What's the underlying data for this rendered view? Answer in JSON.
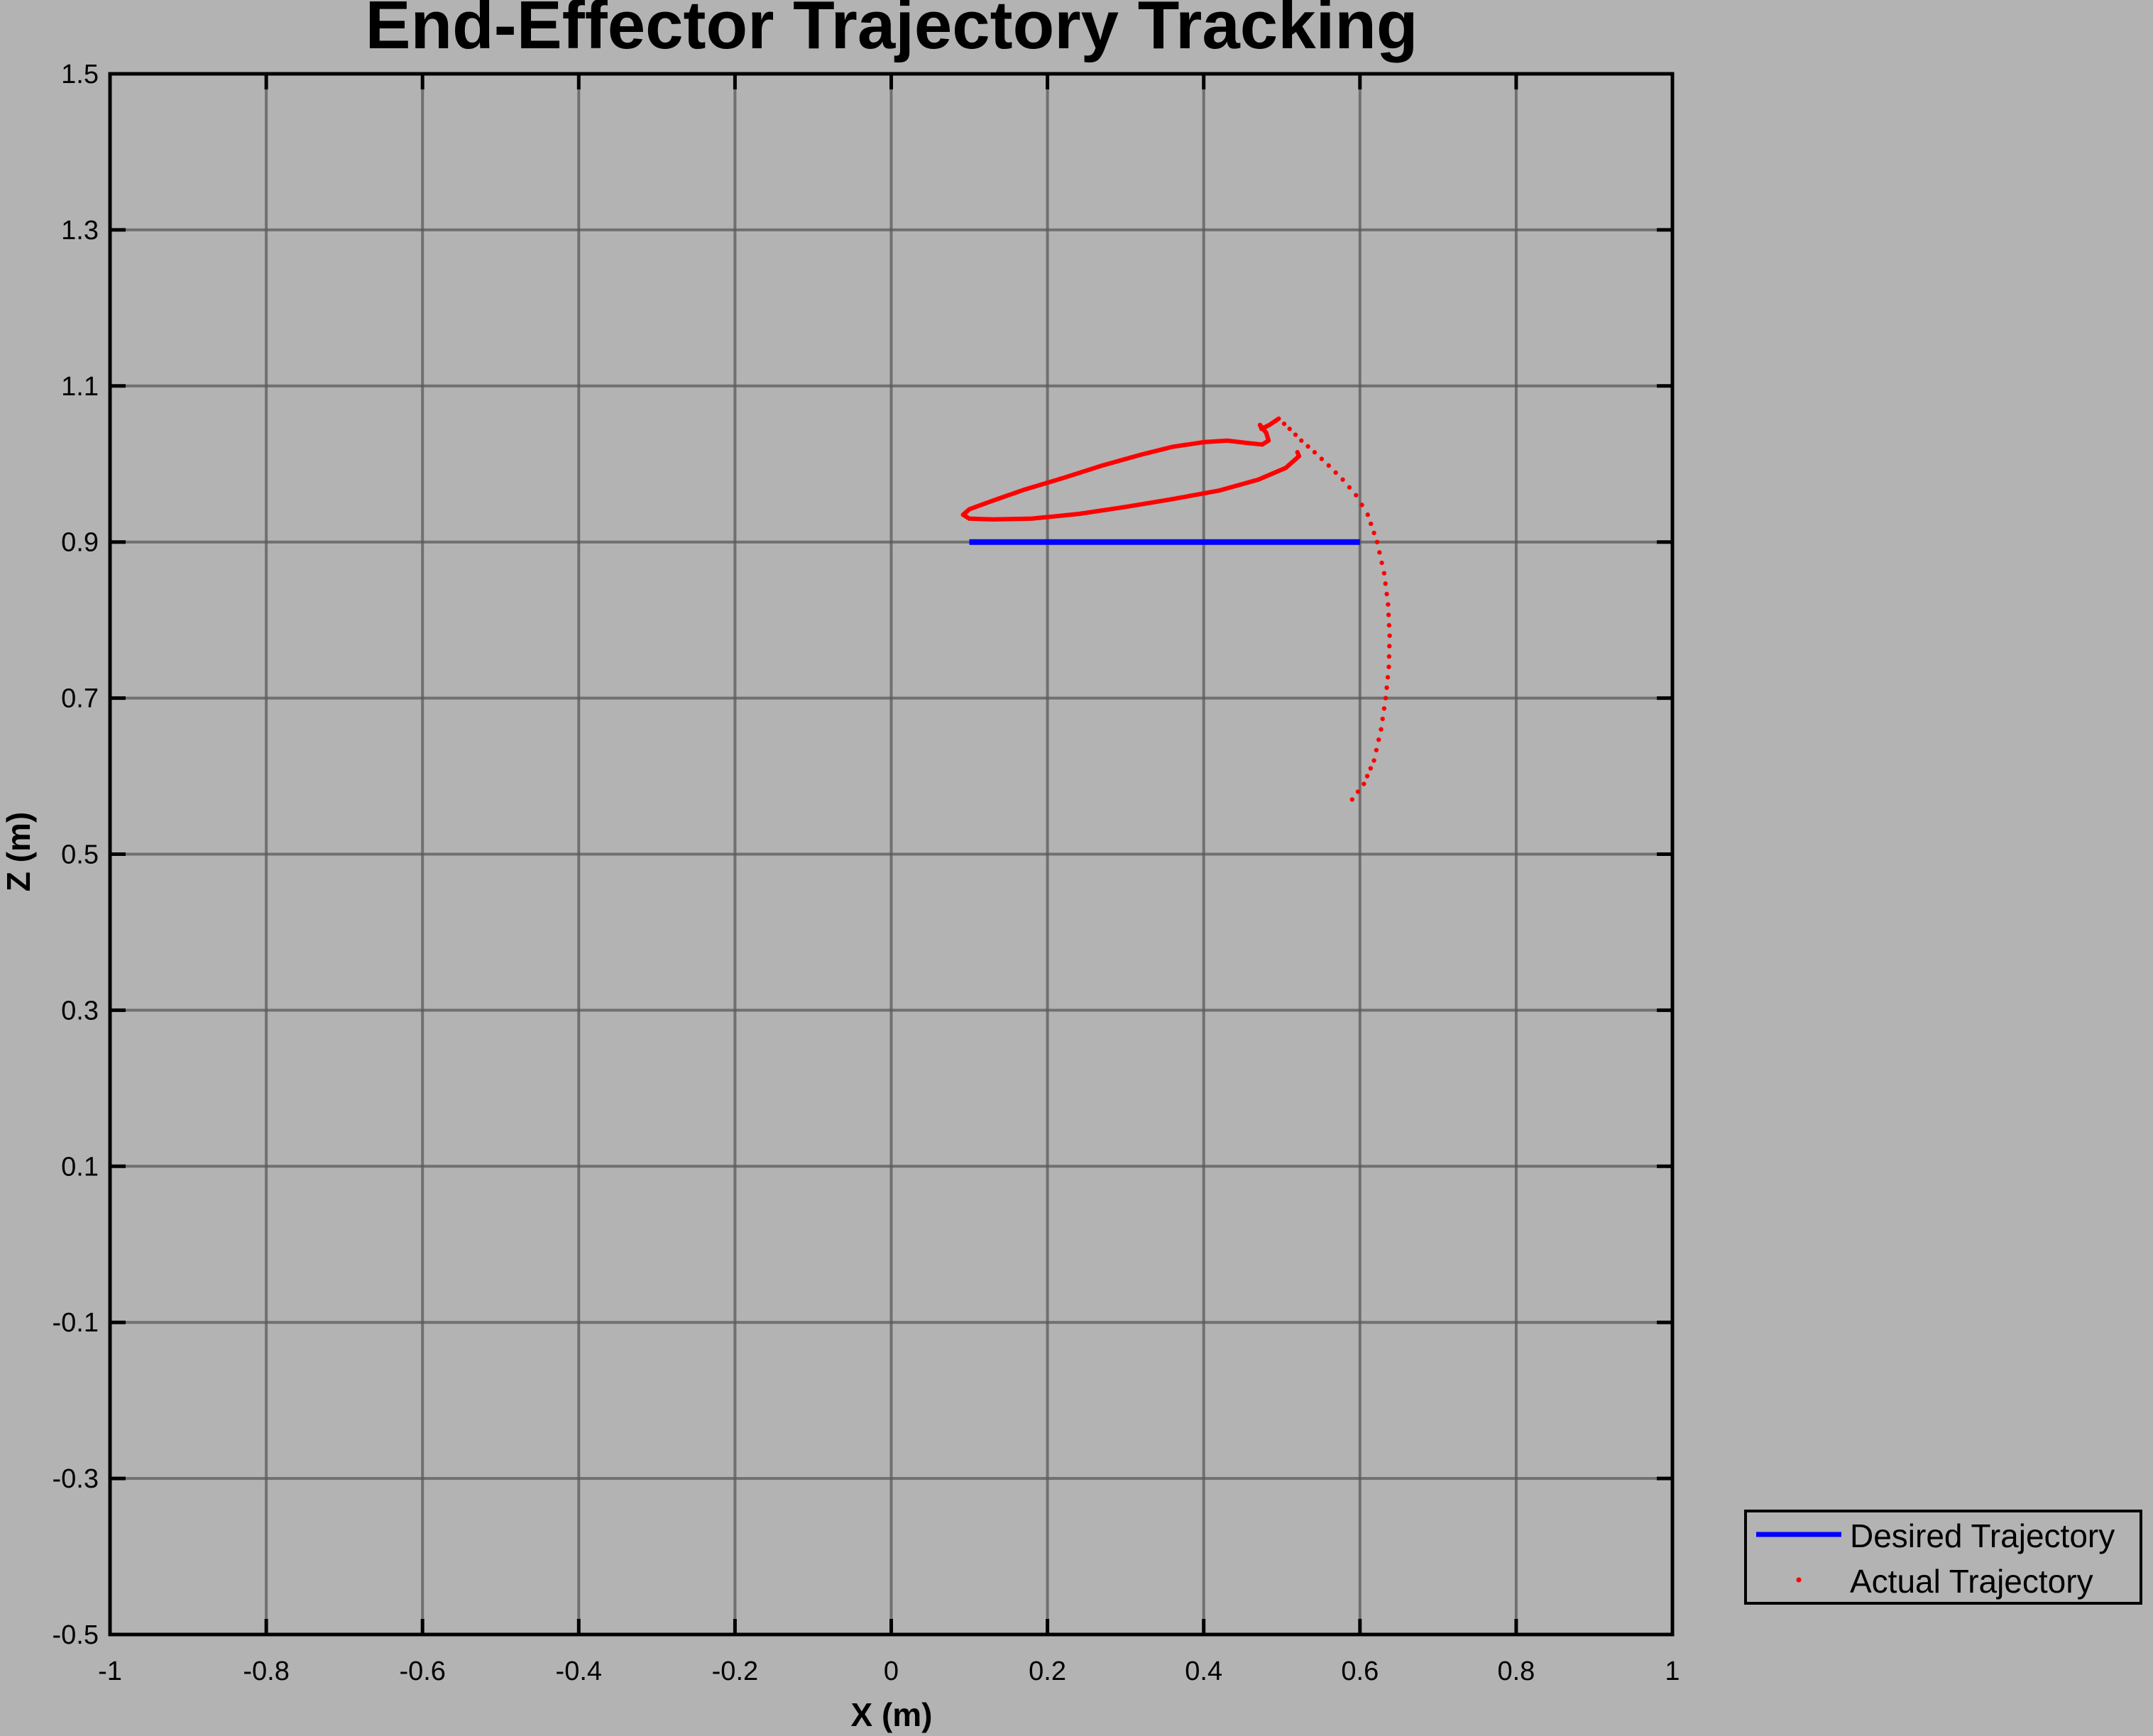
{
  "chart_data": {
    "type": "line",
    "title": "End-Effector Trajectory Tracking",
    "xlabel": "X (m)",
    "ylabel": "Z (m)",
    "xlim": [
      -1,
      1
    ],
    "ylim": [
      -0.5,
      1.5
    ],
    "xticks": [
      -1,
      -0.8,
      -0.6,
      -0.4,
      -0.2,
      0,
      0.2,
      0.4,
      0.6,
      0.8,
      1
    ],
    "xtick_labels": [
      "-1",
      "-0.8",
      "-0.6",
      "-0.4",
      "-0.2",
      "0",
      "0.2",
      "0.4",
      "0.6",
      "0.8",
      "1"
    ],
    "yticks": [
      -0.5,
      -0.3,
      -0.1,
      0.1,
      0.3,
      0.5,
      0.7,
      0.9,
      1.1,
      1.3,
      1.5
    ],
    "ytick_labels": [
      "-0.5",
      "-0.3",
      "-0.1",
      "0.1",
      "0.3",
      "0.5",
      "0.7",
      "0.9",
      "1.1",
      "1.3",
      "1.5"
    ],
    "grid": true,
    "legend_position": "outside-bottom-right",
    "background_color": "#b3b3b3",
    "series": [
      {
        "name": "Desired Trajectory",
        "style": "line",
        "color": "#0000ff",
        "x": [
          0.1,
          0.6
        ],
        "y": [
          0.9,
          0.9
        ]
      },
      {
        "name": "Actual Trajectory",
        "style": "dots",
        "color": "#ff0000",
        "x": [
          0.59,
          0.605,
          0.618,
          0.627,
          0.633,
          0.637,
          0.638,
          0.636,
          0.631,
          0.622,
          0.61,
          0.595,
          0.578,
          0.56,
          0.542,
          0.525,
          0.51,
          0.496,
          0.484,
          0.474,
          0.472,
          0.48,
          0.483,
          0.475,
          0.455,
          0.43,
          0.4,
          0.36,
          0.32,
          0.27,
          0.22,
          0.17,
          0.13,
          0.1,
          0.092,
          0.1,
          0.13,
          0.18,
          0.24,
          0.3,
          0.36,
          0.42,
          0.47,
          0.505,
          0.522,
          0.52
        ],
        "y": [
          0.57,
          0.59,
          0.62,
          0.66,
          0.7,
          0.74,
          0.78,
          0.82,
          0.86,
          0.9,
          0.935,
          0.96,
          0.98,
          0.998,
          1.015,
          1.03,
          1.045,
          1.058,
          1.05,
          1.045,
          1.05,
          1.04,
          1.03,
          1.025,
          1.027,
          1.03,
          1.028,
          1.022,
          1.012,
          0.998,
          0.982,
          0.967,
          0.953,
          0.942,
          0.935,
          0.93,
          0.929,
          0.93,
          0.936,
          0.945,
          0.955,
          0.966,
          0.98,
          0.995,
          1.01,
          1.015
        ]
      }
    ]
  }
}
